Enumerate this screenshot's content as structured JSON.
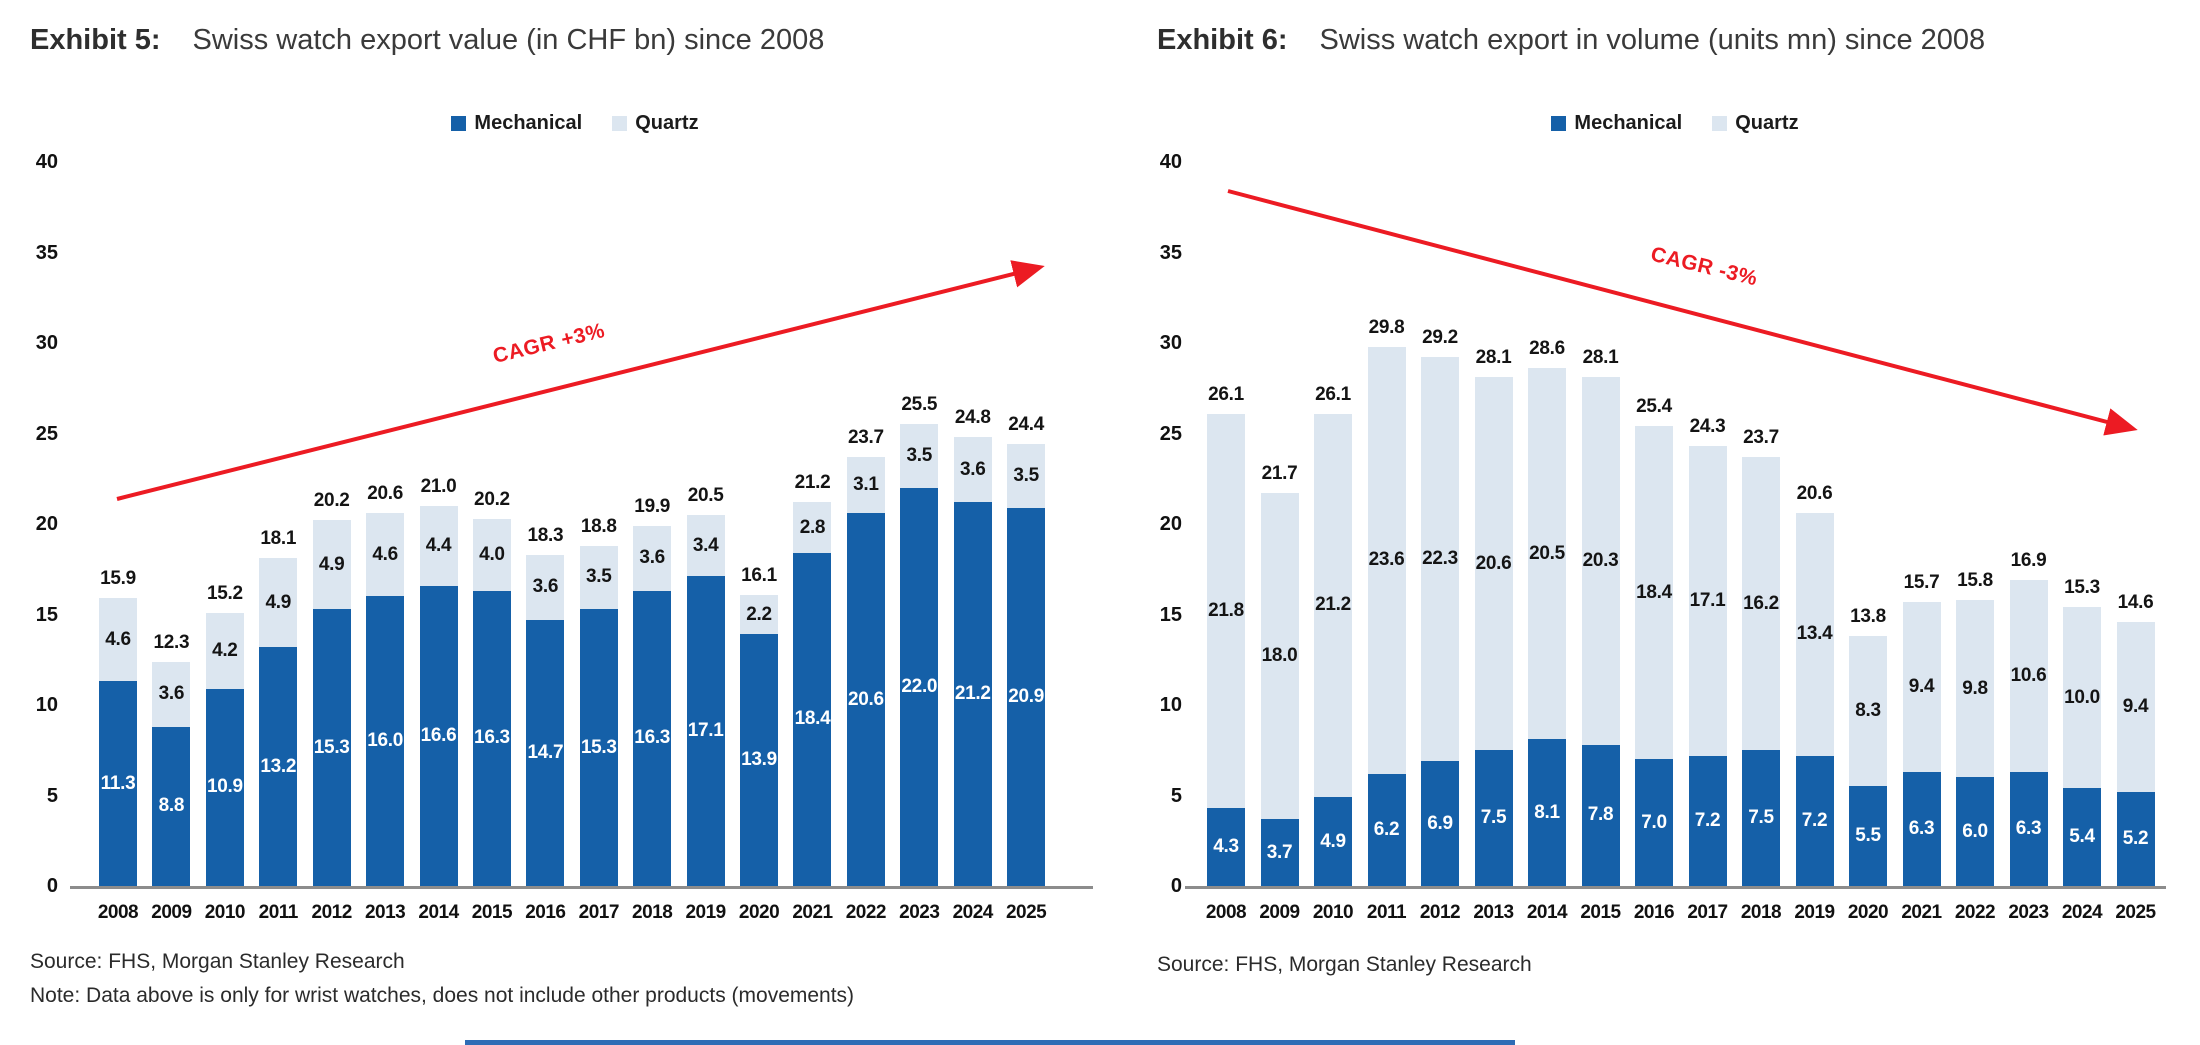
{
  "colors": {
    "mechanical": "#1560a8",
    "quartz": "#dce6f0",
    "trend": "#ec1b23",
    "accent_bar": "#2e6cb5"
  },
  "chart_data": [
    {
      "type": "bar",
      "stacked": true,
      "exhibit": "Exhibit 5:",
      "title": "Swiss watch export value (in CHF bn) since 2008",
      "categories": [
        "2008",
        "2009",
        "2010",
        "2011",
        "2012",
        "2013",
        "2014",
        "2015",
        "2016",
        "2017",
        "2018",
        "2019",
        "2020",
        "2021",
        "2022",
        "2023",
        "2024",
        "2025"
      ],
      "series": [
        {
          "name": "Mechanical",
          "color_key": "mechanical",
          "values": [
            11.3,
            8.8,
            10.9,
            13.2,
            15.3,
            16.0,
            16.6,
            16.3,
            14.7,
            15.3,
            16.3,
            17.1,
            13.9,
            18.4,
            20.6,
            22.0,
            21.2,
            20.9
          ]
        },
        {
          "name": "Quartz",
          "color_key": "quartz",
          "values": [
            4.6,
            3.6,
            4.2,
            4.9,
            4.9,
            4.6,
            4.4,
            4.0,
            3.6,
            3.5,
            3.6,
            3.4,
            2.2,
            2.8,
            3.1,
            3.5,
            3.6,
            3.5
          ]
        }
      ],
      "totals": [
        15.9,
        12.3,
        15.2,
        18.1,
        20.2,
        20.6,
        21.0,
        20.2,
        18.3,
        18.8,
        19.9,
        20.5,
        16.1,
        21.2,
        23.7,
        25.5,
        24.8,
        24.4
      ],
      "ylim": [
        0,
        40
      ],
      "yticks": [
        0,
        5,
        10,
        15,
        20,
        25,
        30,
        35,
        40
      ],
      "grid": false,
      "legend_position": "top-center",
      "annotation": {
        "text": "CAGR +3%",
        "direction": "up"
      },
      "source": "Source: FHS, Morgan Stanley Research",
      "note": "Note: Data above is only for wrist watches, does not include other products (movements)"
    },
    {
      "type": "bar",
      "stacked": true,
      "exhibit": "Exhibit 6:",
      "title": "Swiss watch export in volume (units mn) since 2008",
      "categories": [
        "2008",
        "2009",
        "2010",
        "2011",
        "2012",
        "2013",
        "2014",
        "2015",
        "2016",
        "2017",
        "2018",
        "2019",
        "2020",
        "2021",
        "2022",
        "2023",
        "2024",
        "2025"
      ],
      "series": [
        {
          "name": "Mechanical",
          "color_key": "mechanical",
          "values": [
            4.3,
            3.7,
            4.9,
            6.2,
            6.9,
            7.5,
            8.1,
            7.8,
            7.0,
            7.2,
            7.5,
            7.2,
            5.5,
            6.3,
            6.0,
            6.3,
            5.4,
            5.2
          ]
        },
        {
          "name": "Quartz",
          "color_key": "quartz",
          "values": [
            21.8,
            18.0,
            21.2,
            23.6,
            22.3,
            20.6,
            20.5,
            20.3,
            18.4,
            17.1,
            16.2,
            13.4,
            8.3,
            9.4,
            9.8,
            10.6,
            10.0,
            9.4
          ]
        }
      ],
      "totals": [
        26.1,
        21.7,
        26.1,
        29.8,
        29.2,
        28.1,
        28.6,
        28.1,
        25.4,
        24.3,
        23.7,
        20.6,
        13.8,
        15.7,
        15.8,
        16.9,
        15.3,
        14.6
      ],
      "ylim": [
        0,
        40
      ],
      "yticks": [
        0,
        5,
        10,
        15,
        20,
        25,
        30,
        35,
        40
      ],
      "grid": false,
      "legend_position": "top-center",
      "annotation": {
        "text": "CAGR -3%",
        "direction": "down"
      },
      "source": "Source: FHS, Morgan Stanley Research",
      "note": ""
    }
  ]
}
